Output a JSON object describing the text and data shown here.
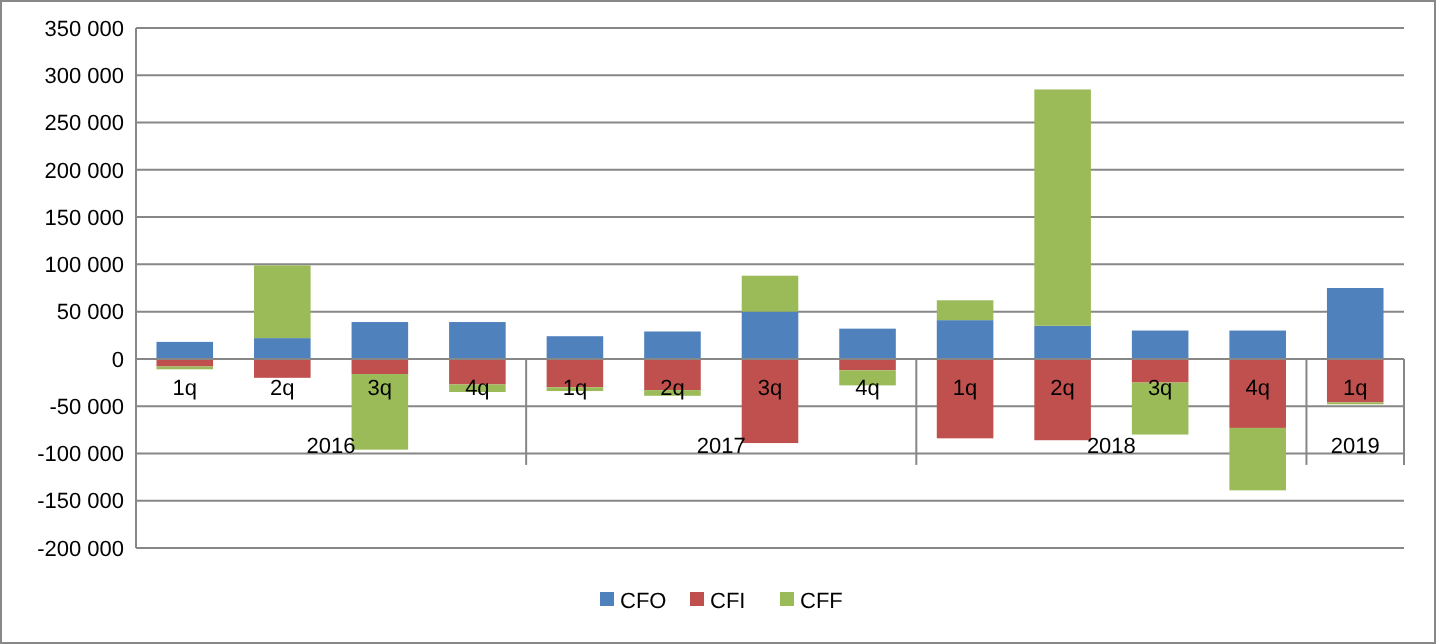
{
  "chart_data": {
    "type": "bar",
    "stacked": true,
    "categories": [
      "1q",
      "2q",
      "3q",
      "4q",
      "1q",
      "2q",
      "3q",
      "4q",
      "1q",
      "2q",
      "3q",
      "4q",
      "1q"
    ],
    "series": [
      {
        "name": "CFO",
        "color": "#4f81bd",
        "values": [
          18000,
          22000,
          39000,
          39000,
          24000,
          29000,
          50000,
          32000,
          41000,
          35000,
          30000,
          30000,
          75000
        ]
      },
      {
        "name": "CFI",
        "color": "#c0504d",
        "values": [
          -8000,
          -20000,
          -16000,
          -27000,
          -30000,
          -33000,
          -89000,
          -12000,
          -84000,
          -86000,
          -25000,
          -73000,
          -46000
        ]
      },
      {
        "name": "CFF",
        "color": "#9bbb59",
        "values": [
          -3000,
          77000,
          -80000,
          -8000,
          -4000,
          -6000,
          38000,
          -16000,
          21000,
          250000,
          -55000,
          -66000,
          -2000
        ]
      }
    ],
    "ylim": [
      -200000,
      350000
    ],
    "yticks": [
      {
        "value": -200000,
        "label": "-200 000"
      },
      {
        "value": -150000,
        "label": "-150 000"
      },
      {
        "value": -100000,
        "label": "-100 000"
      },
      {
        "value": -50000,
        "label": "-50 000"
      },
      0,
      {
        "value": 50000,
        "label": "50 000"
      },
      {
        "value": 100000,
        "label": "100 000"
      },
      {
        "value": 150000,
        "label": "150 000"
      },
      {
        "value": 200000,
        "label": "200 000"
      },
      {
        "value": 250000,
        "label": "250 000"
      },
      {
        "value": 300000,
        "label": "300 000"
      },
      {
        "value": 350000,
        "label": "350 000"
      }
    ],
    "annotations": [
      "2016",
      "2017",
      "2018",
      "2019"
    ],
    "grid": "y",
    "legend": "bottom"
  }
}
